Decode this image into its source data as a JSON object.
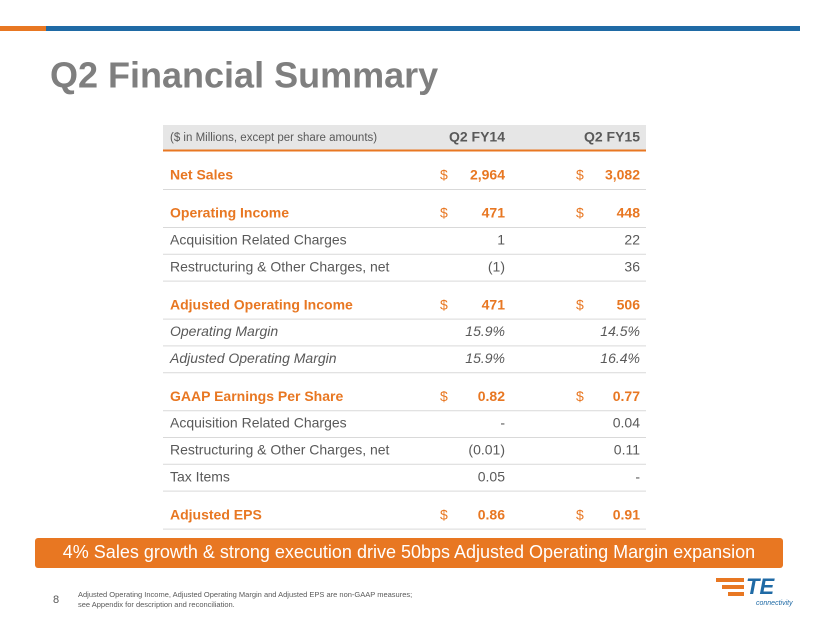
{
  "header": {
    "title": "Q2 Financial Summary"
  },
  "table": {
    "columns": [
      "($ in Millions, except per share amounts)",
      "Q2 FY14",
      "Q2 FY15"
    ],
    "groups": [
      {
        "head": {
          "label": "Net Sales",
          "values": [
            {
              "currency": "$",
              "amount": "2,964"
            },
            {
              "currency": "$",
              "amount": "3,082"
            }
          ]
        }
      },
      {
        "head": {
          "label": "Operating Income",
          "values": [
            {
              "currency": "$",
              "amount": "471"
            },
            {
              "currency": "$",
              "amount": "448"
            }
          ]
        },
        "items": [
          {
            "label": "Acquisition Related Charges",
            "values": [
              "1",
              "22"
            ]
          },
          {
            "label": "Restructuring & Other Charges, net",
            "values": [
              "(1)",
              "36"
            ]
          }
        ]
      },
      {
        "head": {
          "label": "Adjusted Operating Income",
          "values": [
            {
              "currency": "$",
              "amount": "471"
            },
            {
              "currency": "$",
              "amount": "506"
            }
          ]
        },
        "italic_items": [
          {
            "label": "Operating Margin",
            "values": [
              "15.9%",
              "14.5%"
            ]
          },
          {
            "label": "Adjusted Operating Margin",
            "values": [
              "15.9%",
              "16.4%"
            ]
          }
        ]
      },
      {
        "head": {
          "label": "GAAP Earnings Per Share",
          "values": [
            {
              "currency": "$",
              "amount": "0.82"
            },
            {
              "currency": "$",
              "amount": "0.77"
            }
          ]
        },
        "items": [
          {
            "label": "Acquisition Related Charges",
            "values": [
              "-",
              "0.04"
            ]
          },
          {
            "label": "Restructuring & Other Charges, net",
            "values": [
              "(0.01)",
              "0.11"
            ]
          },
          {
            "label": "Tax Items",
            "values": [
              "0.05",
              "-"
            ]
          }
        ]
      },
      {
        "head": {
          "label": "Adjusted EPS",
          "values": [
            {
              "currency": "$",
              "amount": "0.86"
            },
            {
              "currency": "$",
              "amount": "0.91"
            }
          ]
        }
      }
    ]
  },
  "banner": "4% Sales growth & strong execution drive 50bps Adjusted Operating Margin expansion",
  "footer": {
    "page": "8",
    "notes": [
      "Adjusted Operating Income, Adjusted Operating Margin and Adjusted EPS are non-GAAP measures;",
      "see Appendix for description and reconciliation."
    ]
  },
  "logo": {
    "text": "TE",
    "tagline": "connectivity"
  }
}
